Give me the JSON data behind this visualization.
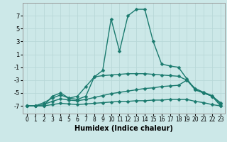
{
  "title": "",
  "xlabel": "Humidex (Indice chaleur)",
  "ylabel": "",
  "bg_color": "#cce8e8",
  "line_color": "#1a7a6e",
  "grid_color": "#b8d8d8",
  "xlim": [
    -0.5,
    23.5
  ],
  "ylim": [
    -8.2,
    9.0
  ],
  "xticks": [
    0,
    1,
    2,
    3,
    4,
    5,
    6,
    7,
    8,
    9,
    10,
    11,
    12,
    13,
    14,
    15,
    16,
    17,
    18,
    19,
    20,
    21,
    22,
    23
  ],
  "yticks": [
    -7,
    -5,
    -3,
    -1,
    1,
    3,
    5,
    7
  ],
  "series": [
    {
      "x": [
        0,
        1,
        2,
        3,
        4,
        5,
        6,
        7,
        8,
        9,
        10,
        11,
        12,
        13,
        14,
        15,
        16,
        17,
        18,
        19,
        20,
        21,
        22,
        23
      ],
      "y": [
        -7,
        -7,
        -7,
        -5.5,
        -5,
        -5.8,
        -5.5,
        -4,
        -2.5,
        -1.5,
        6.5,
        1.5,
        7,
        8,
        8,
        3,
        -0.5,
        -0.8,
        -1,
        -2.8,
        -4.5,
        -5,
        -5.5,
        -7
      ]
    },
    {
      "x": [
        0,
        1,
        2,
        3,
        4,
        5,
        6,
        7,
        8,
        9,
        10,
        11,
        12,
        13,
        14,
        15,
        16,
        17,
        18,
        19,
        20,
        21,
        22,
        23
      ],
      "y": [
        -7,
        -7,
        -6.5,
        -5.8,
        -5.3,
        -5.8,
        -6,
        -5.5,
        -2.5,
        -2.3,
        -2.2,
        -2.1,
        -2.0,
        -2.0,
        -2.0,
        -2.1,
        -2.2,
        -2.3,
        -2.4,
        -3,
        -4.5,
        -5,
        -5.5,
        -6.5
      ]
    },
    {
      "x": [
        0,
        1,
        2,
        3,
        4,
        5,
        6,
        7,
        8,
        9,
        10,
        11,
        12,
        13,
        14,
        15,
        16,
        17,
        18,
        19,
        20,
        21,
        22,
        23
      ],
      "y": [
        -7,
        -7,
        -6.8,
        -6.3,
        -5.9,
        -6.1,
        -6.2,
        -6.0,
        -5.7,
        -5.4,
        -5.1,
        -4.9,
        -4.7,
        -4.5,
        -4.3,
        -4.2,
        -4.0,
        -3.9,
        -3.8,
        -3,
        -4.3,
        -4.9,
        -5.4,
        -6.7
      ]
    },
    {
      "x": [
        0,
        1,
        2,
        3,
        4,
        5,
        6,
        7,
        8,
        9,
        10,
        11,
        12,
        13,
        14,
        15,
        16,
        17,
        18,
        19,
        20,
        21,
        22,
        23
      ],
      "y": [
        -7,
        -7,
        -7,
        -6.8,
        -6.6,
        -6.7,
        -6.8,
        -6.7,
        -6.6,
        -6.5,
        -6.4,
        -6.3,
        -6.3,
        -6.2,
        -6.2,
        -6.1,
        -6.1,
        -6.0,
        -6.0,
        -6.0,
        -6.3,
        -6.5,
        -6.8,
        -7
      ]
    }
  ],
  "marker": "D",
  "markersize": 2.5,
  "linewidth": 1.0
}
